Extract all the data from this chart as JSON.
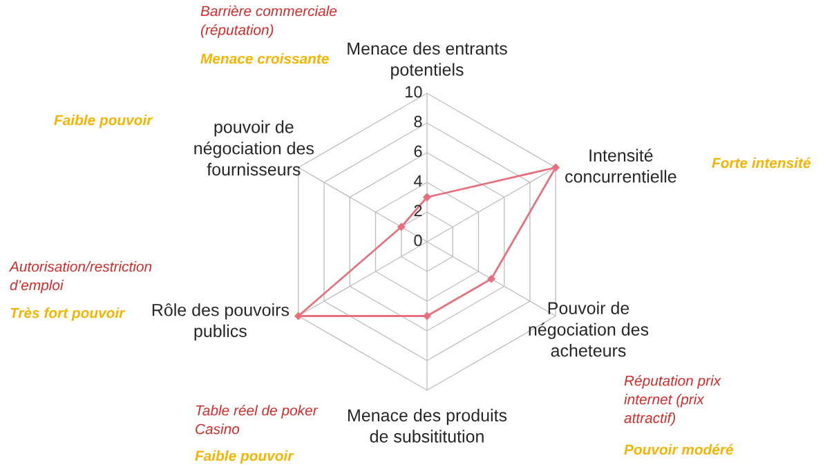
{
  "chart_data": {
    "type": "radar",
    "categories": [
      "Menace des entrants\npotentiels",
      "Intensité\nconcurrentielle",
      "Pouvoir de\nnégociation des\nacheteurs",
      "Menace des produits\nde subsititution",
      "Rôle des pouvoirs\npublics",
      "pouvoir de\nnégociation des\nfournisseurs"
    ],
    "series": [
      {
        "color": "#e8707e",
        "values": [
          3,
          10,
          5,
          5,
          10,
          2
        ]
      }
    ],
    "ylim": [
      0,
      10
    ],
    "yticks": [
      0,
      2,
      4,
      6,
      8,
      10
    ],
    "grid": true,
    "marker": "diamond",
    "line_style": "solid",
    "annotations": [
      "Barrière commerciale\n(réputation)",
      "Menace croissante",
      "Faible pouvoir",
      "Forte intensité",
      "Réputation prix\ninternet (prix\nattractif)",
      "Pouvoir modéré",
      "Table réel de poker\nCasino",
      "Faible pouvoir",
      "Autorisation/restriction\nd’emploi",
      "Très fort pouvoir"
    ]
  }
}
